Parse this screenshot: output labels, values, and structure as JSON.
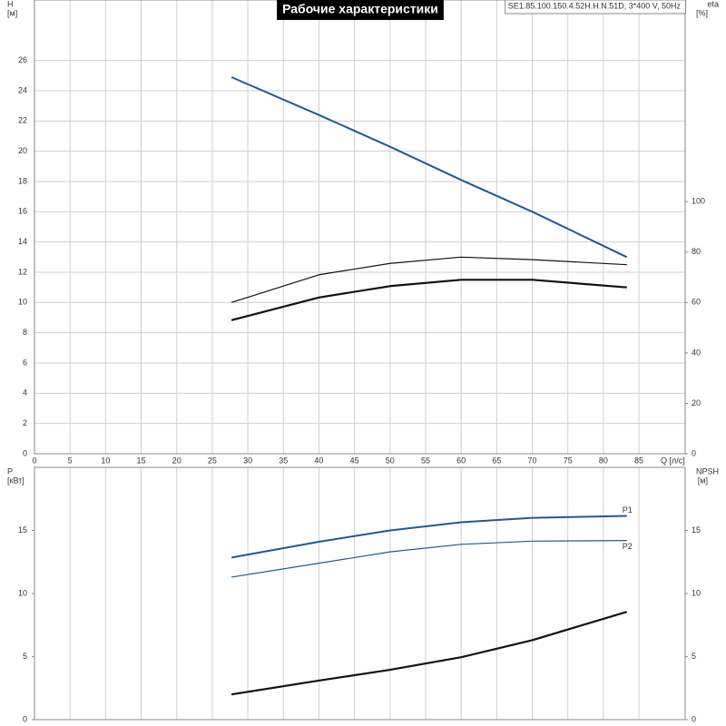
{
  "chart_data": [
    {
      "type": "line",
      "title": "Рабочие характеристики",
      "subtitle": "SE1.85.100.150.4.52H.H.N.51D, 3*400 V, 50Hz",
      "ylabel": "H",
      "ylabel_unit": "[м]",
      "y2label": "eta",
      "y2label_unit": "[%]",
      "xlabel": "Q [л/с]",
      "xlim": [
        0,
        91.5
      ],
      "xticks": [
        0,
        5,
        10,
        15,
        20,
        25,
        30,
        35,
        40,
        45,
        50,
        55,
        60,
        65,
        70,
        75,
        80,
        85
      ],
      "ylim": [
        0,
        30
      ],
      "yticks": [
        0,
        2,
        4,
        6,
        8,
        10,
        12,
        14,
        16,
        18,
        20,
        22,
        24,
        26
      ],
      "y2lim": [
        0,
        180
      ],
      "y2ticks": [
        0,
        20,
        40,
        60,
        80,
        100
      ],
      "grid": "both",
      "x": [
        27.7,
        40,
        50,
        60,
        70,
        83.3
      ],
      "series": [
        {
          "color": "#1f5a96",
          "width": 2,
          "values": [
            24.9,
            22.4,
            20.3,
            18.1,
            16.0,
            13.0
          ]
        },
        {
          "color": "#111111",
          "width": 1.2,
          "axis": "y2",
          "values": [
            60,
            71,
            75.5,
            78,
            77,
            75
          ]
        },
        {
          "color": "#111111",
          "width": 2.2,
          "axis": "y2",
          "values": [
            53,
            62,
            66.5,
            69,
            69,
            66
          ]
        }
      ]
    },
    {
      "type": "line",
      "ylabel": "P",
      "ylabel_unit": "[кВт]",
      "y2label": "NPSH",
      "y2label_unit": "[м]",
      "xlim": [
        0,
        91.5
      ],
      "xticks": [
        0,
        5,
        10,
        15,
        20,
        25,
        30,
        35,
        40,
        45,
        50,
        55,
        60,
        65,
        70,
        75,
        80,
        85
      ],
      "ylim": [
        0,
        20
      ],
      "yticks": [
        0,
        5,
        10,
        15
      ],
      "y2lim": [
        0,
        20
      ],
      "y2ticks": [
        0,
        5,
        10,
        15
      ],
      "grid": "x",
      "x": [
        27.7,
        40,
        50,
        60,
        70,
        83.3
      ],
      "series": [
        {
          "name": "P1",
          "color": "#1f5a96",
          "width": 2,
          "values": [
            12.85,
            14.1,
            15.0,
            15.65,
            16.0,
            16.15
          ]
        },
        {
          "name": "P2",
          "color": "#1f5a96",
          "width": 1.2,
          "values": [
            11.3,
            12.4,
            13.3,
            13.9,
            14.15,
            14.2
          ]
        },
        {
          "color": "#111111",
          "width": 2.2,
          "axis": "y2",
          "values": [
            2.0,
            3.1,
            3.95,
            4.95,
            6.3,
            8.55
          ]
        }
      ]
    }
  ]
}
